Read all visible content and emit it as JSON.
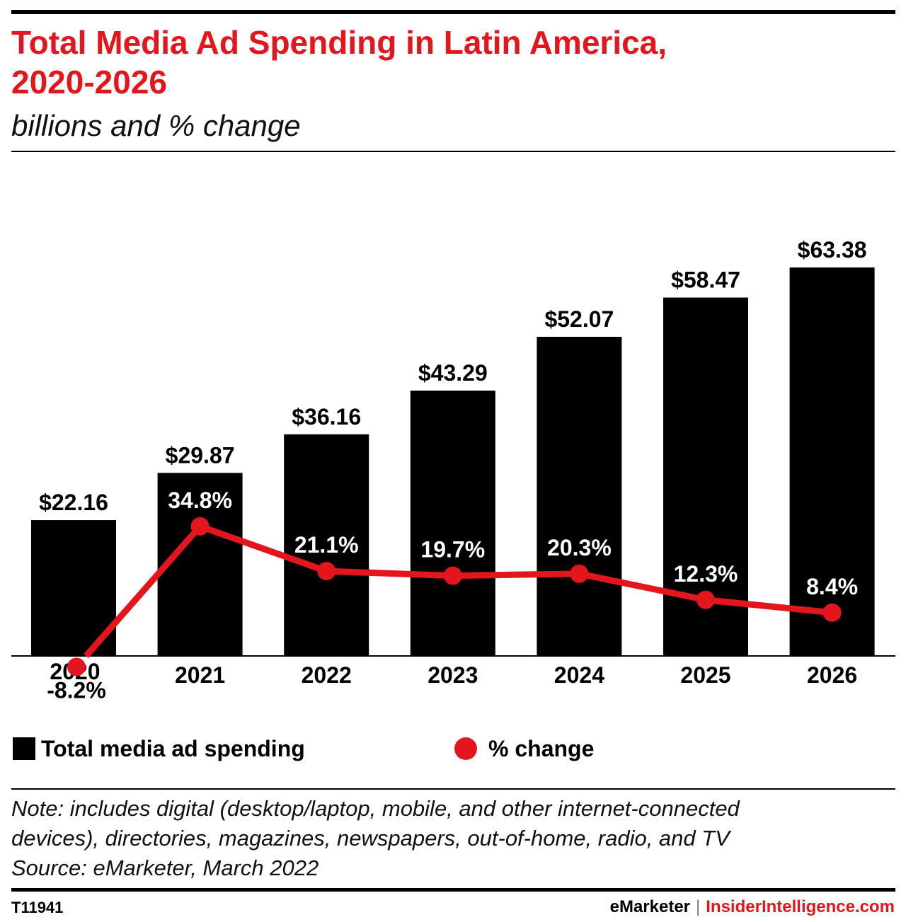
{
  "header": {
    "title_line1": "Total Media Ad Spending in Latin America,",
    "title_line2": "2020-2026",
    "subtitle": "billions and % change"
  },
  "chart_data": {
    "type": "bar",
    "categories": [
      "2020",
      "2021",
      "2022",
      "2023",
      "2024",
      "2025",
      "2026"
    ],
    "series": [
      {
        "name": "Total media ad spending",
        "type": "bar",
        "values": [
          22.16,
          29.87,
          36.16,
          43.29,
          52.07,
          58.47,
          63.38
        ],
        "labels": [
          "$22.16",
          "$29.87",
          "$36.16",
          "$43.29",
          "$52.07",
          "$58.47",
          "$63.38"
        ],
        "color": "#000000"
      },
      {
        "name": "% change",
        "type": "line",
        "values": [
          -8.2,
          34.8,
          21.1,
          19.7,
          20.3,
          12.3,
          8.4
        ],
        "labels": [
          "-8.2%",
          "34.8%",
          "21.1%",
          "19.7%",
          "20.3%",
          "12.3%",
          "8.4%"
        ],
        "color": "#e4161d"
      }
    ],
    "ylim": [
      0,
      70
    ],
    "grid": false,
    "legend": "bottom"
  },
  "legend": {
    "bars_label": "Total media ad spending",
    "line_label": "% change"
  },
  "footer": {
    "note_line1": "Note: includes digital (desktop/laptop, mobile, and other internet-connected",
    "note_line2": "devices), directories, magazines, newspapers, out-of-home, radio, and TV",
    "source": "Source: eMarketer, March 2022",
    "chart_id": "T11941",
    "brand_1": "eMarketer",
    "brand_sep": "|",
    "brand_2": "InsiderIntelligence.com"
  },
  "colors": {
    "accent": "#e4161d",
    "bar": "#000000"
  }
}
